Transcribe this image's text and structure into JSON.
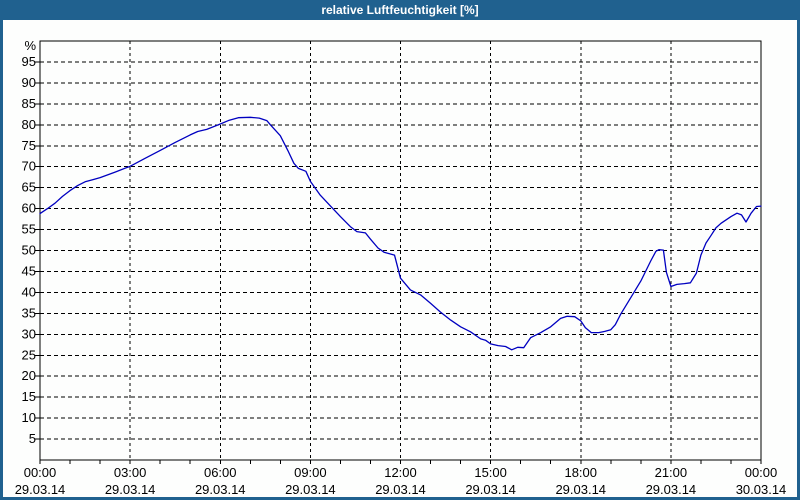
{
  "window": {
    "title": "relative Luftfeuchtigkeit [%]"
  },
  "colors": {
    "frame": "#20618f",
    "window_bg": "#fdfefd",
    "plot_bg": "#fdfefd",
    "grid": "#000000",
    "axis": "#000000",
    "tick_text": "#000000",
    "title_text": "#ffffff",
    "line": "#0000c0"
  },
  "chart_data": {
    "type": "line",
    "title": "relative Luftfeuchtigkeit [%]",
    "ylabel": "%",
    "xlabel": "",
    "ylim": [
      0,
      100
    ],
    "xlim_hours": [
      0,
      24
    ],
    "grid_style": "dashed",
    "legend": "none",
    "y_ticks": [
      5,
      10,
      15,
      20,
      25,
      30,
      35,
      40,
      45,
      50,
      55,
      60,
      65,
      70,
      75,
      80,
      85,
      90,
      95
    ],
    "x_gridline_hours": [
      3,
      6,
      9,
      12,
      15,
      18,
      21
    ],
    "x_minor_tick_every_hours": 1,
    "x_ticks": [
      {
        "hour": 0,
        "time": "00:00",
        "date": "29.03.14"
      },
      {
        "hour": 3,
        "time": "03:00",
        "date": "29.03.14"
      },
      {
        "hour": 6,
        "time": "06:00",
        "date": "29.03.14"
      },
      {
        "hour": 9,
        "time": "09:00",
        "date": "29.03.14"
      },
      {
        "hour": 12,
        "time": "12:00",
        "date": "29.03.14"
      },
      {
        "hour": 15,
        "time": "15:00",
        "date": "29.03.14"
      },
      {
        "hour": 18,
        "time": "18:00",
        "date": "29.03.14"
      },
      {
        "hour": 21,
        "time": "21:00",
        "date": "29.03.14"
      },
      {
        "hour": 24,
        "time": "00:00",
        "date": "30.03.14"
      }
    ],
    "series": [
      {
        "name": "relative Luftfeuchtigkeit [%]",
        "color": "#0000c0",
        "points": [
          [
            0,
            58.8
          ],
          [
            0.25,
            60
          ],
          [
            0.5,
            61.3
          ],
          [
            0.75,
            62.9
          ],
          [
            1,
            64.3
          ],
          [
            1.25,
            65.5
          ],
          [
            1.5,
            66.4
          ],
          [
            1.75,
            66.9
          ],
          [
            2,
            67.4
          ],
          [
            2.5,
            68.7
          ],
          [
            3,
            70.1
          ],
          [
            3.5,
            72
          ],
          [
            4,
            73.9
          ],
          [
            4.5,
            75.8
          ],
          [
            5,
            77.6
          ],
          [
            5.25,
            78.4
          ],
          [
            5.55,
            78.9
          ],
          [
            6,
            80.2
          ],
          [
            6.3,
            81.1
          ],
          [
            6.6,
            81.7
          ],
          [
            7,
            81.8
          ],
          [
            7.3,
            81.6
          ],
          [
            7.55,
            81
          ],
          [
            7.67,
            80
          ],
          [
            8,
            77.4
          ],
          [
            8.25,
            73.9
          ],
          [
            8.45,
            70.8
          ],
          [
            8.6,
            69.6
          ],
          [
            8.85,
            68.9
          ],
          [
            9,
            66.5
          ],
          [
            9.33,
            63.2
          ],
          [
            9.67,
            60.6
          ],
          [
            10,
            58.1
          ],
          [
            10.33,
            55.7
          ],
          [
            10.55,
            54.5
          ],
          [
            10.83,
            54.2
          ],
          [
            11,
            52.7
          ],
          [
            11.25,
            50.6
          ],
          [
            11.45,
            49.6
          ],
          [
            11.8,
            48.9
          ],
          [
            12,
            43.4
          ],
          [
            12.33,
            40.6
          ],
          [
            12.67,
            39.4
          ],
          [
            13,
            37.4
          ],
          [
            13.33,
            35.3
          ],
          [
            13.67,
            33.4
          ],
          [
            14,
            31.8
          ],
          [
            14.33,
            30.6
          ],
          [
            14.67,
            28.9
          ],
          [
            14.83,
            28.6
          ],
          [
            15,
            27.7
          ],
          [
            15.25,
            27.3
          ],
          [
            15.5,
            27.1
          ],
          [
            15.7,
            26.3
          ],
          [
            15.9,
            26.9
          ],
          [
            16.1,
            26.8
          ],
          [
            16.33,
            29.2
          ],
          [
            16.67,
            30.4
          ],
          [
            17,
            31.8
          ],
          [
            17.33,
            33.8
          ],
          [
            17.55,
            34.3
          ],
          [
            17.8,
            34.2
          ],
          [
            18,
            33.2
          ],
          [
            18.15,
            31.6
          ],
          [
            18.35,
            30.4
          ],
          [
            18.6,
            30.4
          ],
          [
            18.8,
            30.7
          ],
          [
            19,
            31.1
          ],
          [
            19.15,
            32.3
          ],
          [
            19.33,
            34.8
          ],
          [
            19.67,
            38.8
          ],
          [
            20,
            42.7
          ],
          [
            20.33,
            47.5
          ],
          [
            20.5,
            49.8
          ],
          [
            20.6,
            50.2
          ],
          [
            20.75,
            50.1
          ],
          [
            20.85,
            44.8
          ],
          [
            21,
            41.4
          ],
          [
            21.2,
            41.9
          ],
          [
            21.45,
            42.1
          ],
          [
            21.65,
            42.3
          ],
          [
            21.85,
            44.6
          ],
          [
            22,
            48.9
          ],
          [
            22.17,
            51.8
          ],
          [
            22.33,
            53.5
          ],
          [
            22.5,
            55.4
          ],
          [
            22.67,
            56.5
          ],
          [
            23,
            58.1
          ],
          [
            23.2,
            58.9
          ],
          [
            23.35,
            58.5
          ],
          [
            23.5,
            56.8
          ],
          [
            23.67,
            58.9
          ],
          [
            23.85,
            60.5
          ],
          [
            24,
            60.6
          ]
        ]
      }
    ]
  }
}
